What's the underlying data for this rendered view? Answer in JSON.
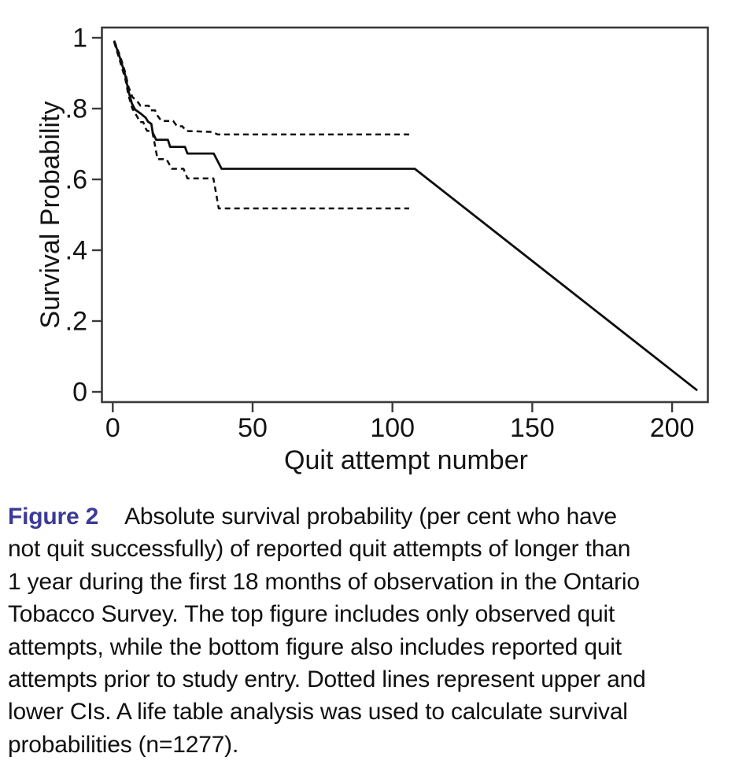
{
  "chart_data": {
    "type": "line",
    "title": "",
    "xlabel": "Quit attempt number",
    "ylabel": "Survival Probability",
    "xlim": [
      -4,
      213
    ],
    "ylim": [
      -0.03,
      1.03
    ],
    "grid": false,
    "legend": "none",
    "x_ticks": [
      0,
      50,
      100,
      150,
      200
    ],
    "x_tick_labels": [
      "0",
      "50",
      "100",
      "150",
      "200"
    ],
    "y_ticks": [
      1,
      0.8,
      0.6,
      0.4,
      0.2,
      0
    ],
    "y_tick_labels": [
      "1",
      ".8",
      ".6",
      ".4",
      ".2",
      "0"
    ],
    "series": [
      {
        "name": "survival-estimate",
        "style": "solid",
        "points": [
          [
            0.5,
            0.99
          ],
          [
            1.5,
            0.968
          ],
          [
            2.5,
            0.945
          ],
          [
            3.5,
            0.92
          ],
          [
            4.5,
            0.893
          ],
          [
            5.6,
            0.85
          ],
          [
            6.8,
            0.815
          ],
          [
            8,
            0.797
          ],
          [
            10,
            0.786
          ],
          [
            11.8,
            0.774
          ],
          [
            12.6,
            0.763
          ],
          [
            13.8,
            0.757
          ],
          [
            14.3,
            0.732
          ],
          [
            15.5,
            0.712
          ],
          [
            19.7,
            0.712
          ],
          [
            20.5,
            0.692
          ],
          [
            25.8,
            0.692
          ],
          [
            26.7,
            0.673
          ],
          [
            36.1,
            0.673
          ],
          [
            38.9,
            0.63
          ],
          [
            108,
            0.63
          ],
          [
            209,
            0.004
          ]
        ]
      },
      {
        "name": "upper-ci",
        "style": "dashed",
        "points": [
          [
            0.5,
            0.992
          ],
          [
            1.5,
            0.972
          ],
          [
            2.5,
            0.951
          ],
          [
            3.5,
            0.927
          ],
          [
            4.5,
            0.901
          ],
          [
            5.6,
            0.862
          ],
          [
            7,
            0.833
          ],
          [
            9,
            0.818
          ],
          [
            9.9,
            0.808
          ],
          [
            12.9,
            0.808
          ],
          [
            13.5,
            0.795
          ],
          [
            15.1,
            0.795
          ],
          [
            16,
            0.78
          ],
          [
            17.4,
            0.765
          ],
          [
            21.6,
            0.765
          ],
          [
            23,
            0.75
          ],
          [
            24.9,
            0.75
          ],
          [
            26.2,
            0.737
          ],
          [
            35.6,
            0.734
          ],
          [
            37.5,
            0.727
          ],
          [
            106,
            0.727
          ]
        ]
      },
      {
        "name": "lower-ci",
        "style": "dashed",
        "points": [
          [
            0.5,
            0.988
          ],
          [
            1.5,
            0.962
          ],
          [
            2.5,
            0.936
          ],
          [
            3.5,
            0.91
          ],
          [
            4.5,
            0.883
          ],
          [
            5.6,
            0.838
          ],
          [
            7,
            0.8
          ],
          [
            8.9,
            0.775
          ],
          [
            9.6,
            0.762
          ],
          [
            10.9,
            0.762
          ],
          [
            11.8,
            0.744
          ],
          [
            12.3,
            0.737
          ],
          [
            14.1,
            0.737
          ],
          [
            15,
            0.7
          ],
          [
            16,
            0.657
          ],
          [
            19.2,
            0.657
          ],
          [
            20.2,
            0.643
          ],
          [
            21.1,
            0.63
          ],
          [
            25.3,
            0.63
          ],
          [
            26.7,
            0.603
          ],
          [
            36,
            0.603
          ],
          [
            37.9,
            0.518
          ],
          [
            106,
            0.518
          ]
        ]
      }
    ]
  },
  "caption": {
    "label": "Figure 2",
    "label_color": "#3c3a96",
    "lines": [
      "Absolute survival probability (per cent who have",
      "not quit successfully) of reported quit attempts of longer than",
      "1 year during the first 18 months of observation in the Ontario",
      "Tobacco Survey. The top figure includes only observed quit",
      "attempts, while the bottom figure also includes reported quit",
      "attempts prior to study entry. Dotted lines represent upper and",
      "lower CIs. A life table analysis was used to calculate survival",
      "probabilities (n=1277)."
    ]
  }
}
